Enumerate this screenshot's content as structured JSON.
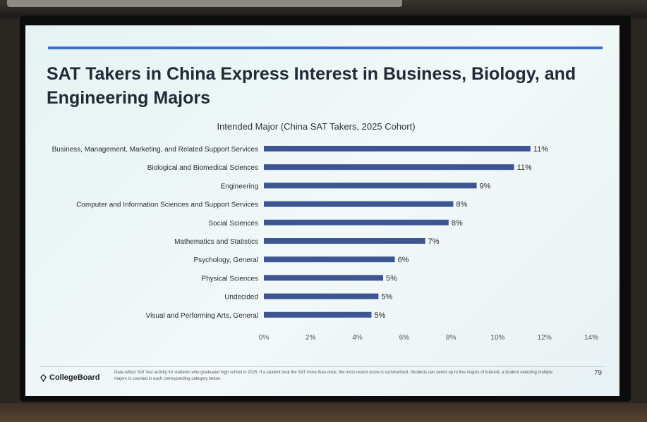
{
  "slide": {
    "title": "SAT Takers in China Express Interest in Business, Biology, and Engineering Majors",
    "footnote": "Data reflect SAT test activity for students who graduated high school in 2025. If a student took the SAT more than once, the most recent score is summarized. Students can select up to five majors of interest; a student selecting multiple majors is counted in each corresponding category below.",
    "logo_text": "CollegeBoard",
    "page_number": "79"
  },
  "colors": {
    "bar": "#3d5591",
    "accent_rule": "#3b6fcf",
    "title": "#222a36"
  },
  "chart_data": {
    "type": "bar",
    "orientation": "horizontal",
    "title": "Intended Major (China SAT Takers, 2025 Cohort)",
    "categories": [
      "Business, Management, Marketing, and Related Support Services",
      "Biological and Biomedical Sciences",
      "Engineering",
      "Computer and Information Sciences and Support Services",
      "Social Sciences",
      "Mathematics and Statistics",
      "Psychology, General",
      "Physical Sciences",
      "Undecided",
      "Visual and Performing Arts, General"
    ],
    "values": [
      11.4,
      10.7,
      9.1,
      8.1,
      7.9,
      6.9,
      5.6,
      5.1,
      4.9,
      4.6
    ],
    "data_labels": [
      "11%",
      "11%",
      "9%",
      "8%",
      "8%",
      "7%",
      "6%",
      "5%",
      "5%",
      "5%"
    ],
    "xlim": [
      0,
      14
    ],
    "x_ticks": [
      0,
      2,
      4,
      6,
      8,
      10,
      12,
      14
    ],
    "x_tick_labels": [
      "0%",
      "2%",
      "4%",
      "6%",
      "8%",
      "10%",
      "12%",
      "14%"
    ],
    "grid": false,
    "legend": "none"
  }
}
